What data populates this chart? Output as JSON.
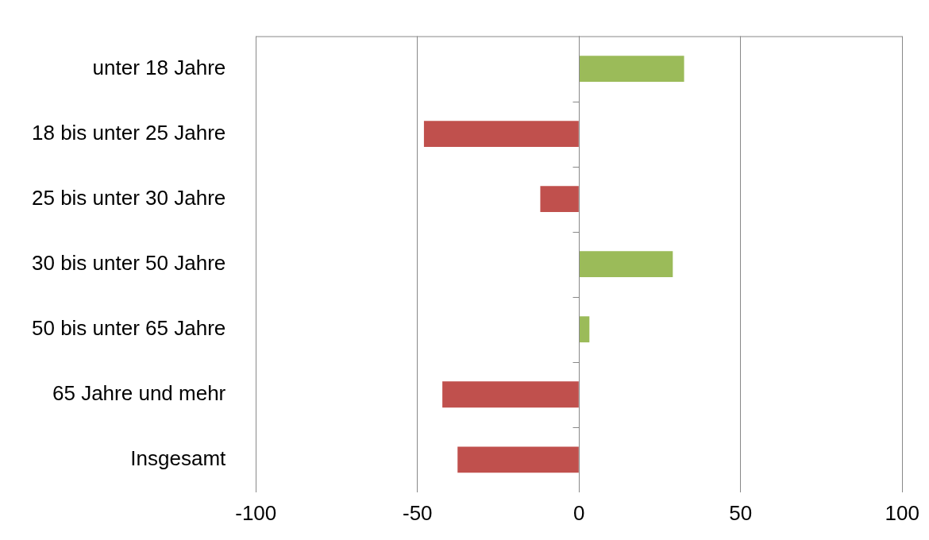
{
  "chart_data": {
    "type": "bar",
    "orientation": "horizontal",
    "categories": [
      "unter 18 Jahre",
      "18 bis unter 25 Jahre",
      "25 bis unter 30 Jahre",
      "30 bis unter 50 Jahre",
      "50 bis unter 65 Jahre",
      "65 Jahre und mehr",
      "Insgesamt"
    ],
    "values": [
      32.5,
      -48,
      -12,
      29,
      3.2,
      -42.3,
      -37.6
    ],
    "colors": [
      "#9bbb59",
      "#c0504d",
      "#c0504d",
      "#9bbb59",
      "#9bbb59",
      "#c0504d",
      "#c0504d"
    ],
    "xlim": [
      -100,
      100
    ],
    "xticks": [
      -100,
      -50,
      0,
      50,
      100
    ],
    "grid": "x",
    "legend": false
  }
}
